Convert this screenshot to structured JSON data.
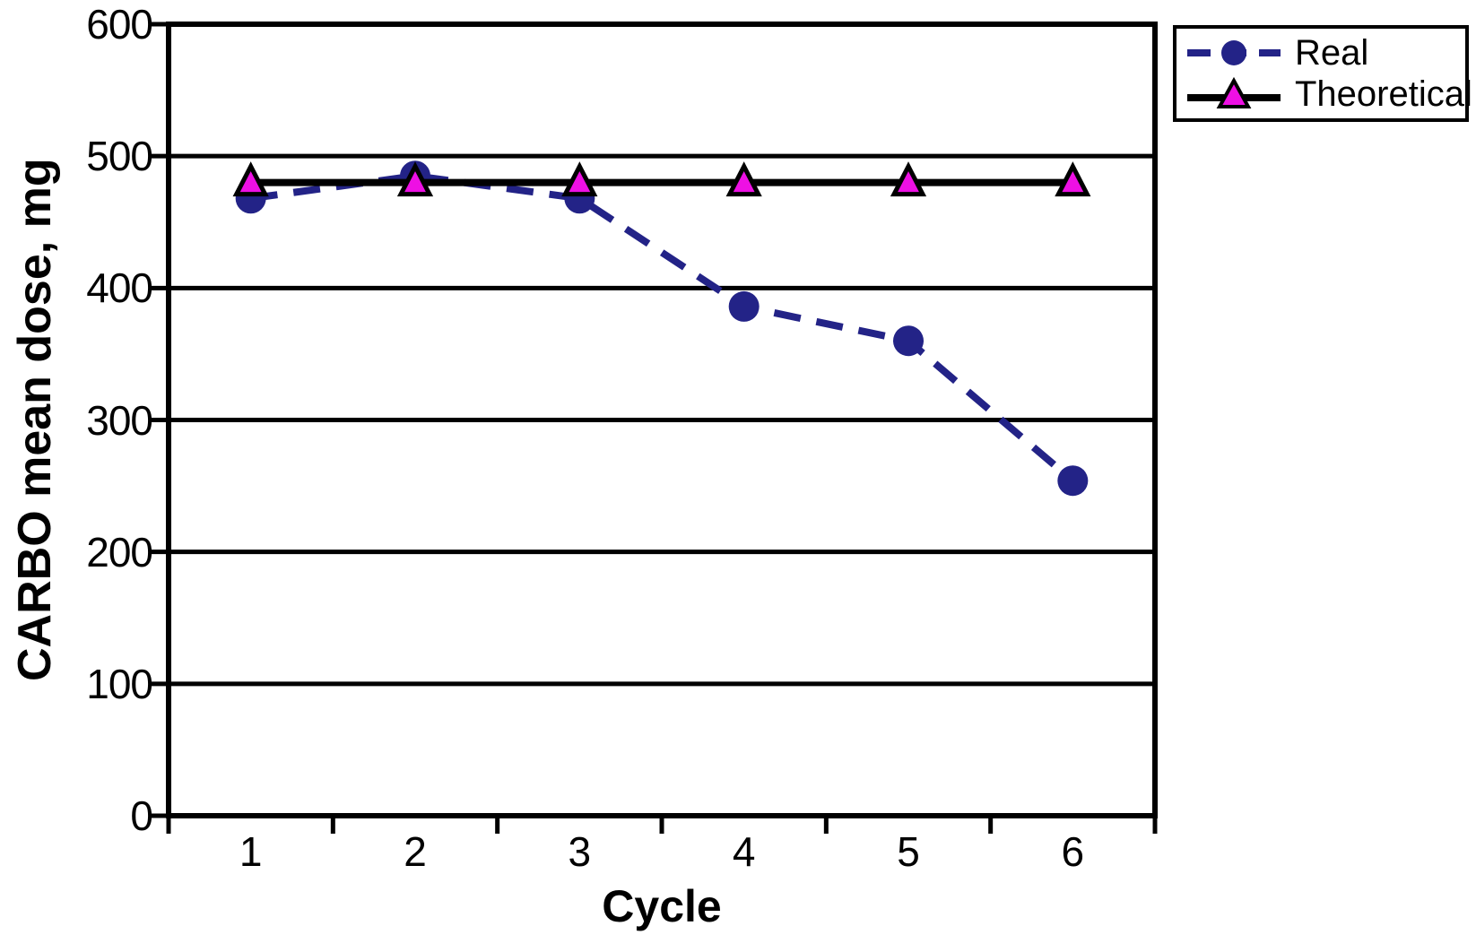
{
  "chart_data": {
    "type": "line",
    "title": "",
    "xlabel": "Cycle",
    "ylabel": "CARBO mean dose, mg",
    "categories": [
      "1",
      "2",
      "3",
      "4",
      "5",
      "6"
    ],
    "y_ticks": [
      0,
      100,
      200,
      300,
      400,
      500,
      600
    ],
    "ylim": [
      0,
      600
    ],
    "grid": "horizontal",
    "legend_position": "outside-top-right",
    "series": [
      {
        "name": "Real",
        "values": [
          468,
          485,
          468,
          386,
          360,
          254
        ],
        "color": "#232387",
        "marker": "circle",
        "marker_color": "#232387",
        "line_style": "dashed"
      },
      {
        "name": "Theoretical",
        "values": [
          480,
          480,
          480,
          480,
          480,
          480
        ],
        "color": "#000000",
        "marker": "triangle",
        "marker_color": "#EE10E4",
        "line_style": "solid"
      }
    ]
  }
}
